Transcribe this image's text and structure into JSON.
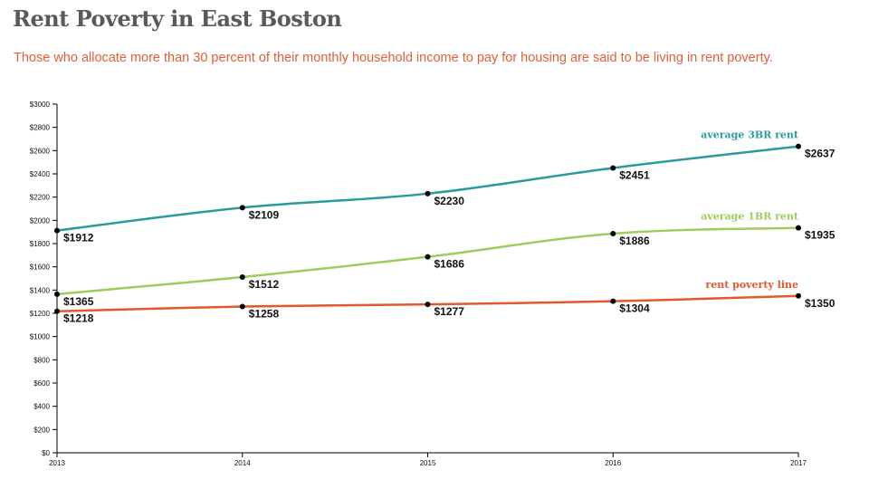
{
  "header": {
    "title": "Rent Poverty in East Boston",
    "subtitle": "Those who allocate more than 30 percent of their monthly household income to pay for housing are said to be living in rent poverty."
  },
  "chart_data": {
    "type": "line",
    "title": "Rent Poverty in East Boston",
    "x": [
      "2013",
      "2014",
      "2015",
      "2016",
      "2017"
    ],
    "ylim": [
      0,
      3000
    ],
    "yticks": [
      "$0",
      "$200",
      "$400",
      "$600",
      "$800",
      "$1000",
      "$1200",
      "$1400",
      "$1600",
      "$1800",
      "$2000",
      "$2200",
      "$2400",
      "$2600",
      "$2800",
      "$3000"
    ],
    "grid": false,
    "legend": "inline labels at right end of each line",
    "series": [
      {
        "name": "average 3BR rent",
        "color": "#2a9a9e",
        "values": [
          1912,
          2109,
          2230,
          2451,
          2637
        ],
        "labels": [
          "$1912",
          "$2109",
          "$2230",
          "$2451",
          "$2637"
        ]
      },
      {
        "name": "average 1BR rent",
        "color": "#9ccc5a",
        "values": [
          1365,
          1512,
          1686,
          1886,
          1935
        ],
        "labels": [
          "$1365",
          "$1512",
          "$1686",
          "$1886",
          "$1935"
        ]
      },
      {
        "name": "rent poverty line",
        "color": "#e05a2e",
        "values": [
          1218,
          1258,
          1277,
          1304,
          1350
        ],
        "labels": [
          "$1218",
          "$1258",
          "$1277",
          "$1304",
          "$1350"
        ]
      }
    ]
  }
}
